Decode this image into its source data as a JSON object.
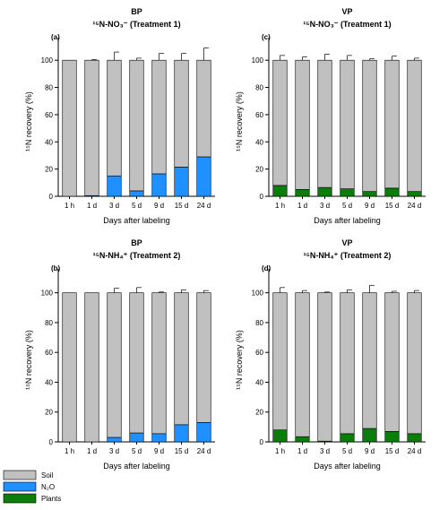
{
  "colors": {
    "soil": "#c0c0c0",
    "n2o": "#1e90ff",
    "plants": "#0a7d0a",
    "axis": "#000000"
  },
  "legend": {
    "items": [
      {
        "key": "soil",
        "label": "Soil"
      },
      {
        "key": "n2o",
        "label": "N₂O"
      },
      {
        "key": "plants",
        "label": "Plants"
      }
    ]
  },
  "chart_data": [
    {
      "type": "bar",
      "stacked": true,
      "panel_label": "(a)",
      "title_line1": "BP",
      "title_line2": "¹⁵N-NO₃⁻ (Treatment 1)",
      "xlabel": "Days after labeling",
      "ylabel": "¹⁵N recovery (%)",
      "ylim": [
        0,
        110
      ],
      "yticks": [
        0,
        20,
        40,
        60,
        80,
        100
      ],
      "categories": [
        "1 h",
        "1 d",
        "3 d",
        "5 d",
        "9 d",
        "15 d",
        "24 d"
      ],
      "series": [
        {
          "key": "n2o",
          "values": [
            0,
            0.5,
            15,
            4,
            16.5,
            21.5,
            29
          ],
          "err": [
            0,
            0.5,
            6,
            1.5,
            5,
            5,
            9
          ]
        },
        {
          "key": "soil",
          "values": [
            100,
            99.5,
            85,
            96,
            83.5,
            78.5,
            71
          ],
          "err": [
            0,
            0.5,
            6,
            1.5,
            5,
            5,
            9
          ]
        }
      ]
    },
    {
      "type": "bar",
      "stacked": true,
      "panel_label": "(c)",
      "title_line1": "VP",
      "title_line2": "¹⁵N-NO₃⁻ (Treatment 1)",
      "xlabel": "Days after labeling",
      "ylabel": "¹⁵N recovery (%)",
      "ylim": [
        0,
        110
      ],
      "yticks": [
        0,
        20,
        40,
        60,
        80,
        100
      ],
      "categories": [
        "1 h",
        "1 d",
        "3 d",
        "5 d",
        "9 d",
        "15 d",
        "24 d"
      ],
      "series": [
        {
          "key": "plants",
          "values": [
            8,
            5,
            6.5,
            5.5,
            3.5,
            6,
            3.5
          ],
          "err": [
            4,
            2.5,
            4,
            3.5,
            1,
            3,
            1.5
          ]
        },
        {
          "key": "soil",
          "values": [
            92,
            95,
            93.5,
            94.5,
            96.5,
            94,
            96.5
          ],
          "err": [
            3.5,
            2.5,
            4.5,
            3.5,
            1,
            3,
            1.5
          ]
        }
      ]
    },
    {
      "type": "bar",
      "stacked": true,
      "panel_label": "(b)",
      "title_line1": "BP",
      "title_line2": "¹⁵N-NH₄⁺ (Treatment 2)",
      "xlabel": "Days after labeling",
      "ylabel": "¹⁵N recovery (%)",
      "ylim": [
        0,
        110
      ],
      "yticks": [
        0,
        20,
        40,
        60,
        80,
        100
      ],
      "categories": [
        "1 h",
        "1 d",
        "3 d",
        "5 d",
        "9 d",
        "15 d",
        "24 d"
      ],
      "series": [
        {
          "key": "n2o",
          "values": [
            0,
            0,
            3,
            6,
            5.5,
            11.5,
            13
          ],
          "err": [
            0,
            0,
            3,
            3.5,
            0.5,
            2.5,
            2
          ]
        },
        {
          "key": "soil",
          "values": [
            100,
            100,
            97,
            94,
            94.5,
            88.5,
            87
          ],
          "err": [
            0,
            0,
            3,
            3.5,
            0.5,
            2,
            1.5
          ]
        }
      ]
    },
    {
      "type": "bar",
      "stacked": true,
      "panel_label": "(d)",
      "title_line1": "VP",
      "title_line2": "¹⁵N-NH₄⁺ (Treatment 2)",
      "xlabel": "Days after labeling",
      "ylabel": "¹⁵N recovery (%)",
      "ylim": [
        0,
        110
      ],
      "yticks": [
        0,
        20,
        40,
        60,
        80,
        100
      ],
      "categories": [
        "1 h",
        "1 d",
        "3 d",
        "5 d",
        "9 d",
        "15 d",
        "24 d"
      ],
      "series": [
        {
          "key": "plants",
          "values": [
            8,
            3.5,
            0.5,
            5.5,
            9,
            7,
            5.5
          ],
          "err": [
            3.5,
            1.5,
            0.5,
            2,
            5,
            1.5,
            1.5
          ]
        },
        {
          "key": "soil",
          "values": [
            92,
            96.5,
            99.5,
            94.5,
            91,
            93,
            94.5
          ],
          "err": [
            3.5,
            1.5,
            0.5,
            2,
            5,
            1,
            1.5
          ]
        }
      ]
    }
  ]
}
